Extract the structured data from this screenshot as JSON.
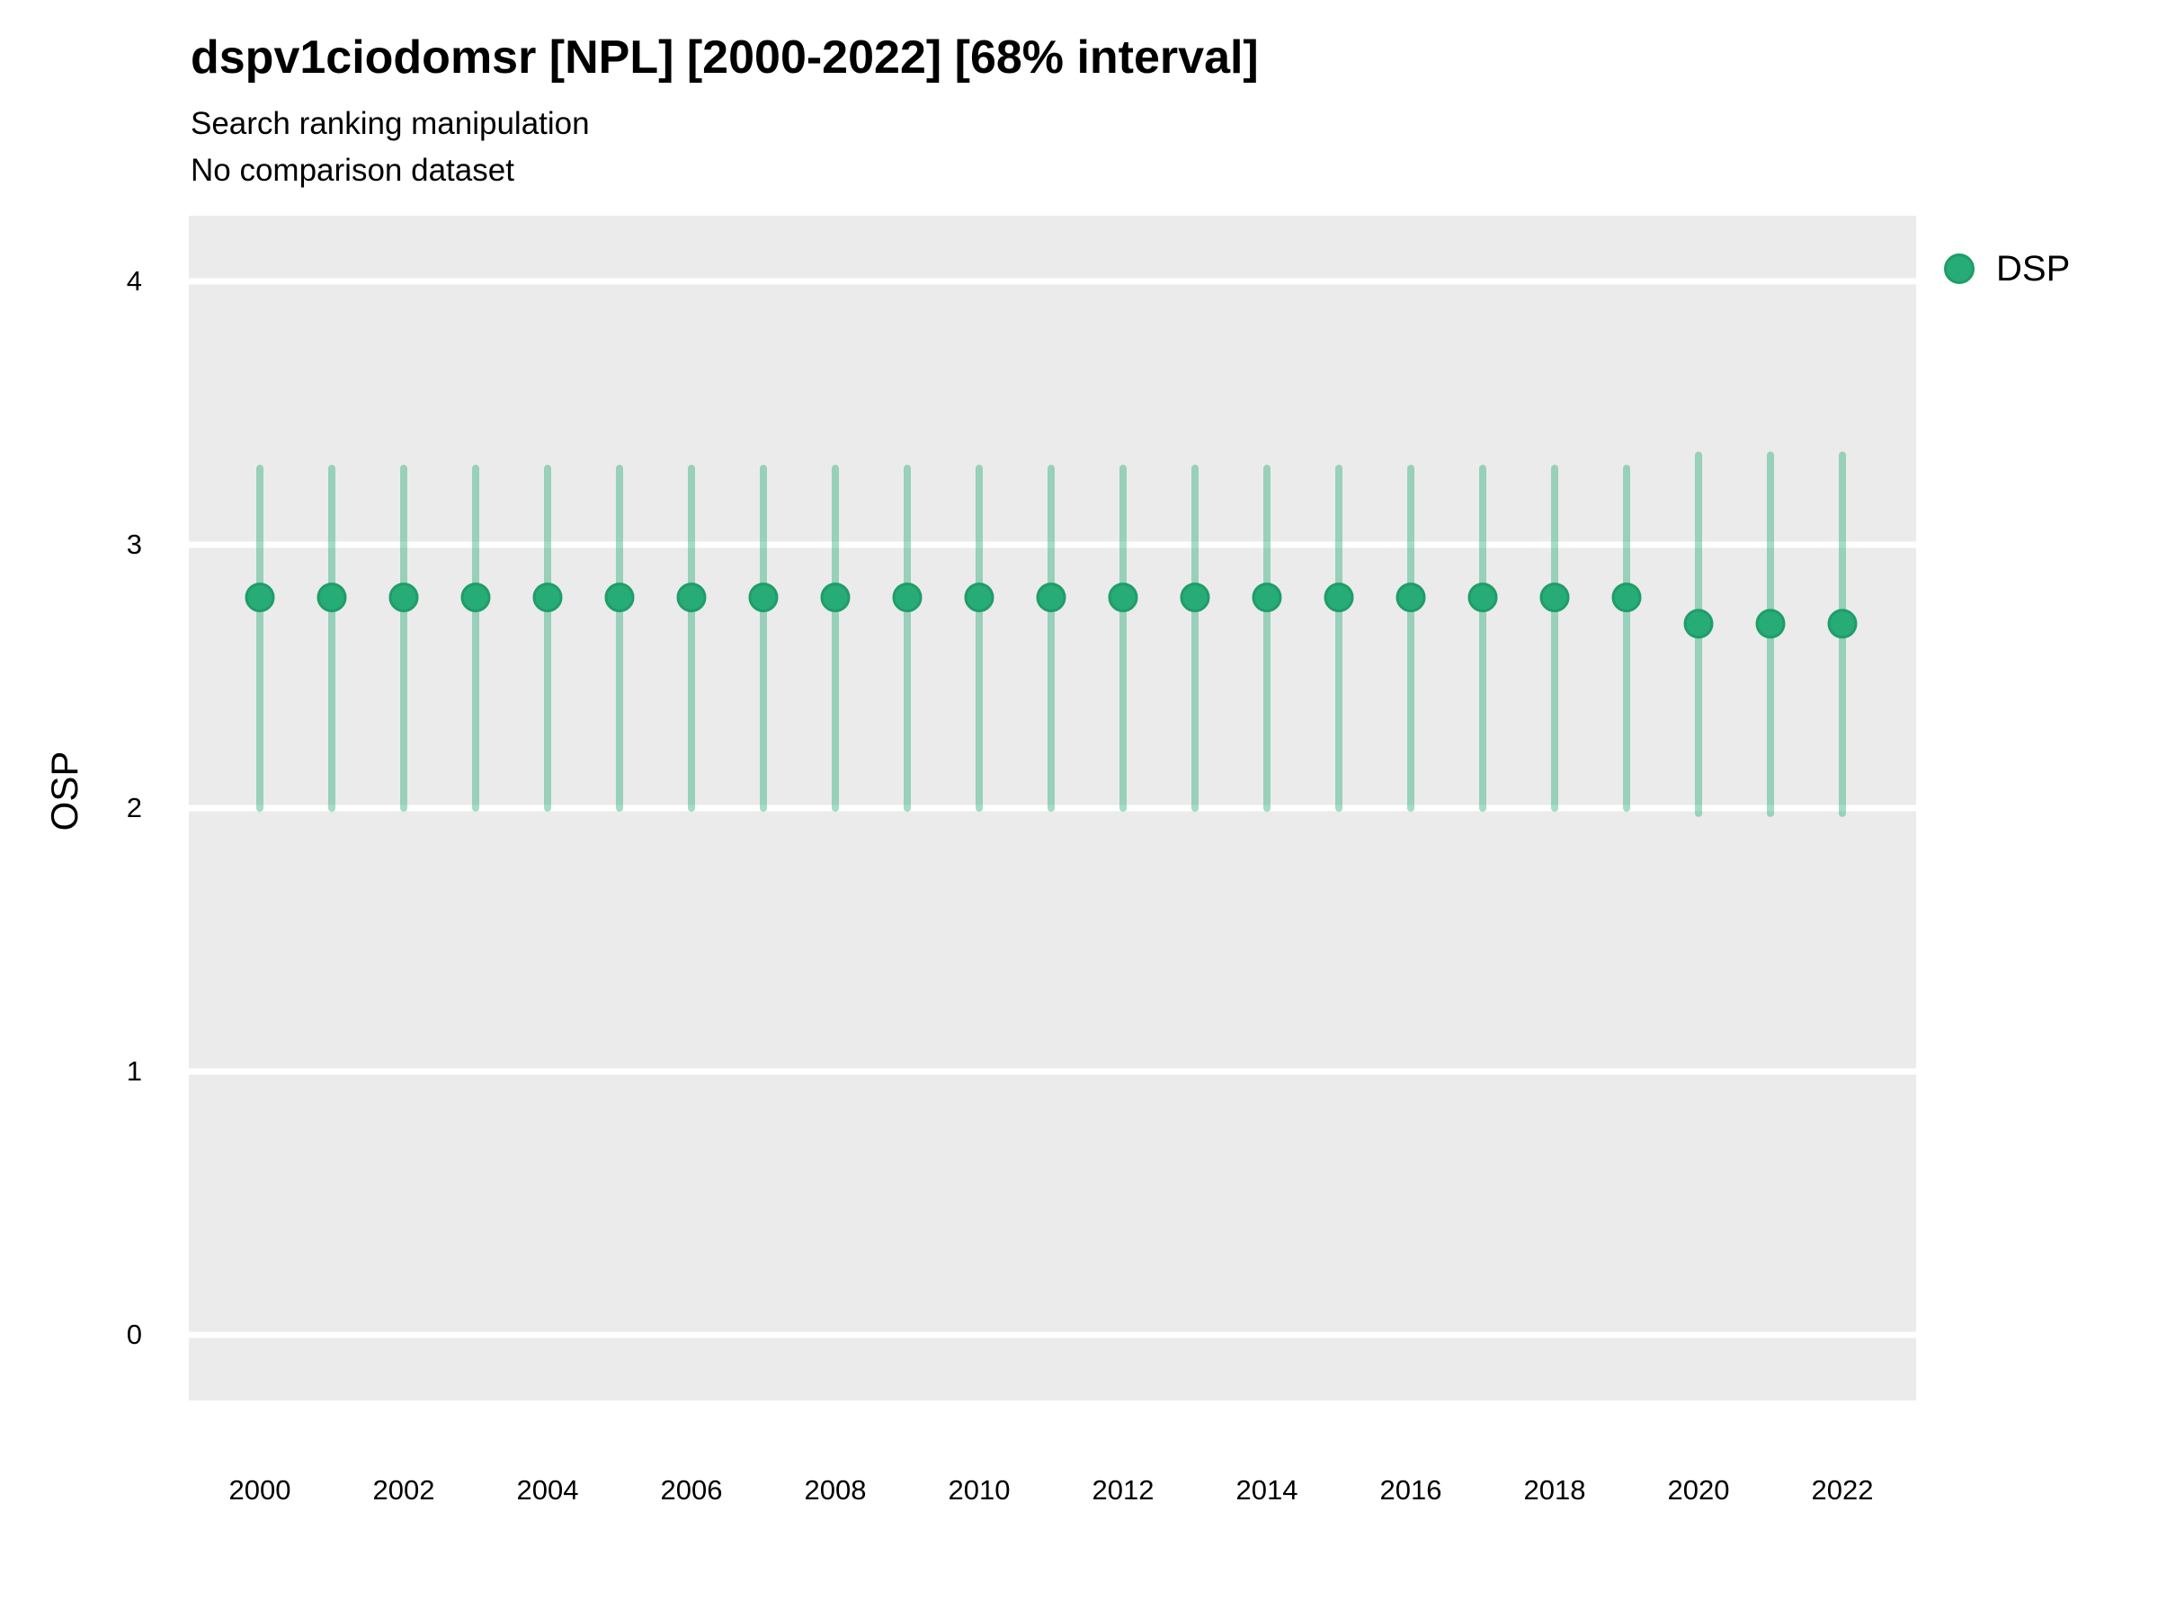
{
  "chart_data": {
    "type": "scatter",
    "variant": "pointrange-interval",
    "title": "dspv1ciodomsr [NPL] [2000-2022] [68% interval]",
    "subtitle": "Search ranking manipulation",
    "note": "No comparison dataset",
    "xlabel": "",
    "ylabel": "OSP",
    "interval_label": "68% interval",
    "legend_position": "right",
    "grid": "white major gridlines on gray panel, no minor gridlines, no axis lines or tick marks",
    "ylim": [
      -0.25,
      4.25
    ],
    "yticks": [
      0,
      1,
      2,
      3,
      4
    ],
    "xticks": [
      2000,
      2002,
      2004,
      2006,
      2008,
      2010,
      2012,
      2014,
      2016,
      2018,
      2020,
      2022
    ],
    "x": [
      2000,
      2001,
      2002,
      2003,
      2004,
      2005,
      2006,
      2007,
      2008,
      2009,
      2010,
      2011,
      2012,
      2013,
      2014,
      2015,
      2016,
      2017,
      2018,
      2019,
      2020,
      2021,
      2022
    ],
    "series": [
      {
        "name": "DSP",
        "values": [
          2.8,
          2.8,
          2.8,
          2.8,
          2.8,
          2.8,
          2.8,
          2.8,
          2.8,
          2.8,
          2.8,
          2.8,
          2.8,
          2.8,
          2.8,
          2.8,
          2.8,
          2.8,
          2.8,
          2.8,
          2.7,
          2.7,
          2.7
        ],
        "lower": [
          2.0,
          2.0,
          2.0,
          2.0,
          2.0,
          2.0,
          2.0,
          2.0,
          2.0,
          2.0,
          2.0,
          2.0,
          2.0,
          2.0,
          2.0,
          2.0,
          2.0,
          2.0,
          2.0,
          2.0,
          1.98,
          1.98,
          1.98
        ],
        "upper": [
          3.29,
          3.29,
          3.29,
          3.29,
          3.29,
          3.29,
          3.29,
          3.29,
          3.29,
          3.29,
          3.29,
          3.29,
          3.29,
          3.29,
          3.29,
          3.29,
          3.29,
          3.29,
          3.29,
          3.29,
          3.34,
          3.34,
          3.34
        ]
      }
    ],
    "legend": [
      {
        "label": "DSP",
        "color": "#27ab77"
      }
    ]
  },
  "colors": {
    "point_fill": "#27ab77",
    "point_stroke": "#1f9d69",
    "interval_bar": "rgba(39,171,119,0.42)",
    "panel_background": "#ebebeb",
    "gridline": "#ffffff",
    "text": "#000000",
    "page_background": "#ffffff"
  }
}
